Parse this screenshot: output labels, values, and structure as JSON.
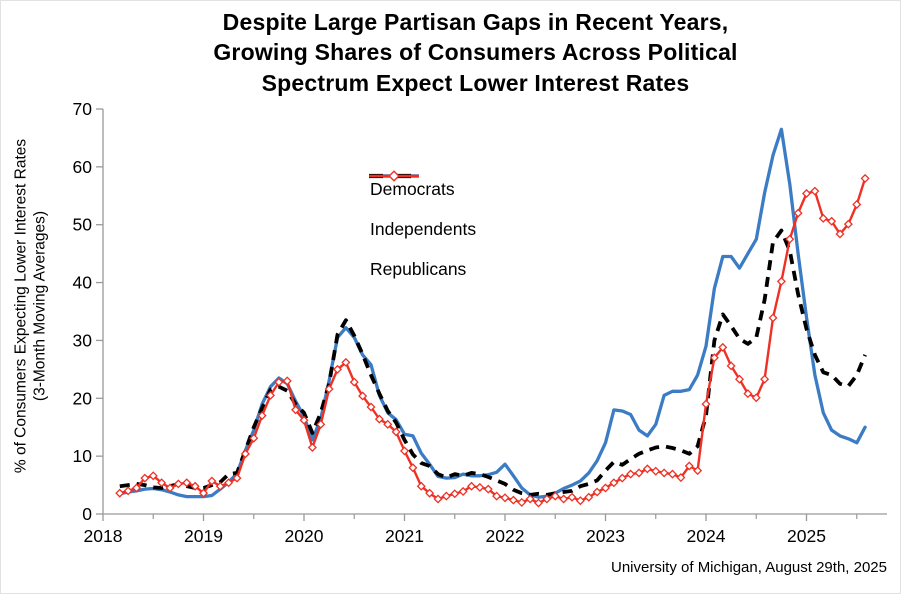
{
  "chart_data": {
    "type": "line",
    "title": "Despite Large Partisan Gaps in Recent Years, Growing Shares of Consumers Across Political Spectrum Expect Lower Interest Rates",
    "title_lines": [
      "Despite Large Partisan Gaps in Recent Years,",
      "Growing Shares of Consumers Across Political",
      "Spectrum Expect Lower Interest Rates"
    ],
    "ylabel": "% of Consumers Expecting Lower Interest Rates (3-Month Moving Averages)",
    "ylabel_lines": [
      "% of Consumers Expecting Lower Interest Rates",
      "(3-Month Moving Averages)"
    ],
    "source": "University of Michigan, August 29th, 2025",
    "x_frequency": "monthly",
    "x_start_month": "2018-03",
    "x_end_month": "2025-08",
    "x_tick_labels": [
      "2018",
      "2019",
      "2020",
      "2021",
      "2022",
      "2023",
      "2024",
      "2025"
    ],
    "y_ticks": [
      0,
      10,
      20,
      30,
      40,
      50,
      60,
      70
    ],
    "ylim": [
      0,
      70
    ],
    "grid": false,
    "legend_position": "inside-upper-left-of-center",
    "series": [
      {
        "name": "Democrats",
        "color": "#3b7cc4",
        "style": "solid",
        "values": [
          3.5,
          3.8,
          4.0,
          4.3,
          4.4,
          4.2,
          3.8,
          3.3,
          3.0,
          3.0,
          3.0,
          3.2,
          4.3,
          5.5,
          7.0,
          11.0,
          14.5,
          19.0,
          22.0,
          23.5,
          22.5,
          19.5,
          16.8,
          12.8,
          16.5,
          23.0,
          30.5,
          32.2,
          30.5,
          27.5,
          25.8,
          20.5,
          17.5,
          16.3,
          13.8,
          13.5,
          10.5,
          8.6,
          6.5,
          6.2,
          6.3,
          6.9,
          6.6,
          6.6,
          6.8,
          7.2,
          8.6,
          6.6,
          4.5,
          3.3,
          2.9,
          3.1,
          3.6,
          4.4,
          5.0,
          5.7,
          7.1,
          9.2,
          12.3,
          18.0,
          17.8,
          17.2,
          14.5,
          13.5,
          15.5,
          20.5,
          21.2,
          21.2,
          21.5,
          24.0,
          29.0,
          39.0,
          44.5,
          44.5,
          42.5,
          45.0,
          47.5,
          55.5,
          62.0,
          66.5,
          57.0,
          45.0,
          34.0,
          24.0,
          17.5,
          14.5,
          13.5,
          13.0,
          12.3,
          15.0
        ]
      },
      {
        "name": "Independents",
        "color": "#000000",
        "style": "dashed",
        "values": [
          4.8,
          5.0,
          5.2,
          5.0,
          4.6,
          4.5,
          4.8,
          5.2,
          4.8,
          4.5,
          4.5,
          5.0,
          5.5,
          6.9,
          7.1,
          11.0,
          15.0,
          18.3,
          21.5,
          22.0,
          21.3,
          19.0,
          17.5,
          14.0,
          17.5,
          22.5,
          31.0,
          33.5,
          30.8,
          27.6,
          24.0,
          20.8,
          17.8,
          15.8,
          12.8,
          10.3,
          8.8,
          8.3,
          6.9,
          6.3,
          6.9,
          6.6,
          7.1,
          6.9,
          6.4,
          5.8,
          5.2,
          4.2,
          3.6,
          3.3,
          3.5,
          3.3,
          3.6,
          3.8,
          4.0,
          4.8,
          5.2,
          5.8,
          7.5,
          9.0,
          8.5,
          9.5,
          10.4,
          11.0,
          11.5,
          11.7,
          11.4,
          11.0,
          10.4,
          11.7,
          17.0,
          30.0,
          34.5,
          32.5,
          30.3,
          29.4,
          30.5,
          37.0,
          47.0,
          49.0,
          45.5,
          38.0,
          32.0,
          27.5,
          24.5,
          24.0,
          22.5,
          22.1,
          24.0,
          27.5
        ]
      },
      {
        "name": "Republicans",
        "color": "#ee3124",
        "style": "solid-diamond-markers",
        "values": [
          3.6,
          4.0,
          4.5,
          6.2,
          6.6,
          5.4,
          4.5,
          5.2,
          5.4,
          4.8,
          3.6,
          5.7,
          4.8,
          5.4,
          6.2,
          10.4,
          13.1,
          17.0,
          20.5,
          22.8,
          23.0,
          18.0,
          16.2,
          11.5,
          15.5,
          21.6,
          25.0,
          26.2,
          22.8,
          20.4,
          18.5,
          16.4,
          15.5,
          14.2,
          10.9,
          8.0,
          4.8,
          3.6,
          2.6,
          3.1,
          3.5,
          3.9,
          4.8,
          4.6,
          4.3,
          3.1,
          2.8,
          2.4,
          2.0,
          2.6,
          1.9,
          2.6,
          3.1,
          2.6,
          2.9,
          2.3,
          2.9,
          3.8,
          4.5,
          5.4,
          6.2,
          6.9,
          7.1,
          7.8,
          7.4,
          7.1,
          6.9,
          6.3,
          8.3,
          7.5,
          19.0,
          27.0,
          28.8,
          25.6,
          23.3,
          20.8,
          20.1,
          23.3,
          33.9,
          40.2,
          47.5,
          52.0,
          55.4,
          55.8,
          51.1,
          50.6,
          48.4,
          50.1,
          53.5,
          58.0
        ]
      }
    ]
  }
}
